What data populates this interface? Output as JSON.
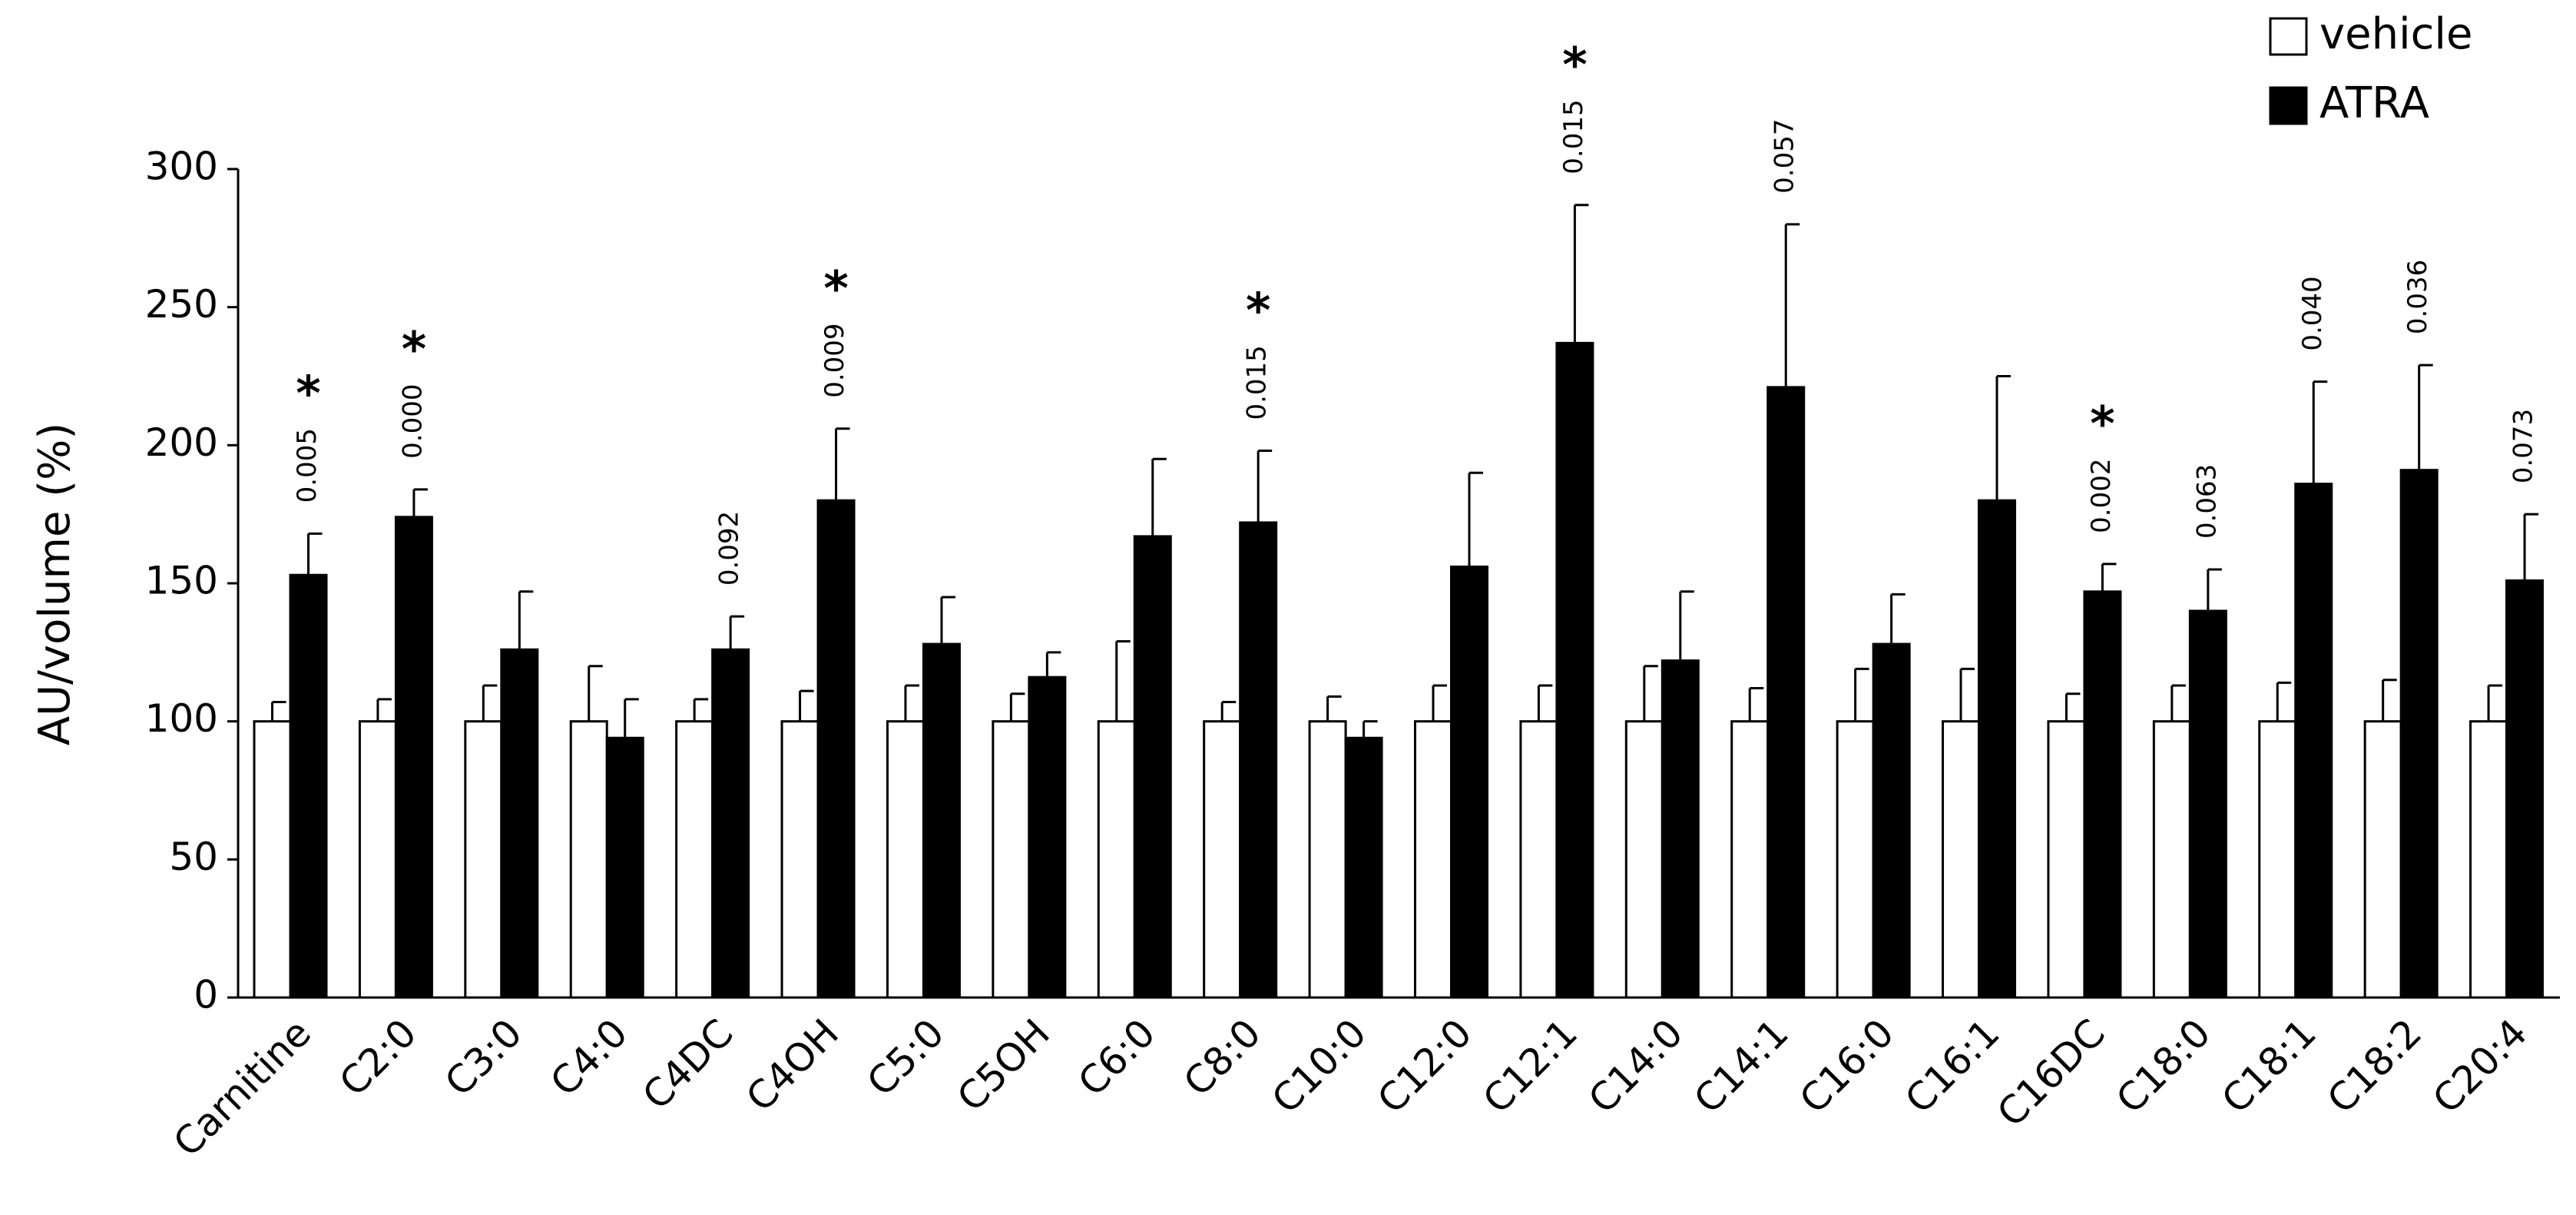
{
  "chart_data": {
    "type": "bar",
    "y_label": "AU/volume (%)",
    "categories": [
      "Carnitine",
      "C2:0",
      "C3:0",
      "C4:0",
      "C4DC",
      "C4OH",
      "C5:0",
      "C5OH",
      "C6:0",
      "C8:0",
      "C10:0",
      "C12:0",
      "C12:1",
      "C14:0",
      "C14:1",
      "C16:0",
      "C16:1",
      "C16DC",
      "C18:0",
      "C18:1",
      "C18:2",
      "C20:4"
    ],
    "series": [
      {
        "name": "vehicle",
        "color": "#ffffff",
        "values": [
          100,
          100,
          100,
          100,
          100,
          100,
          100,
          100,
          100,
          100,
          100,
          100,
          100,
          100,
          100,
          100,
          100,
          100,
          100,
          100,
          100,
          100
        ],
        "errors": [
          7,
          8,
          13,
          20,
          8,
          11,
          13,
          10,
          29,
          7,
          9,
          13,
          13,
          20,
          12,
          19,
          19,
          10,
          13,
          14,
          15,
          13
        ]
      },
      {
        "name": "ATRA",
        "color": "#000000",
        "values": [
          153,
          174,
          126,
          94,
          126,
          180,
          128,
          116,
          167,
          172,
          94,
          156,
          237,
          122,
          221,
          128,
          180,
          147,
          140,
          186,
          191,
          151
        ],
        "errors": [
          15,
          10,
          21,
          14,
          12,
          26,
          17,
          9,
          28,
          26,
          6,
          34,
          50,
          25,
          59,
          18,
          45,
          10,
          15,
          37,
          38,
          24
        ]
      }
    ],
    "p_values": [
      "0.005",
      "0.000",
      null,
      null,
      "0.092",
      "0.009",
      null,
      null,
      null,
      "0.015",
      null,
      null,
      "0.015",
      null,
      "0.057",
      null,
      null,
      "0.002",
      "0.063",
      "0.040",
      "0.036",
      "0.073"
    ],
    "significance": [
      "*",
      "*",
      null,
      null,
      null,
      "*",
      null,
      null,
      null,
      "*",
      null,
      null,
      "*",
      null,
      null,
      null,
      null,
      "*",
      null,
      null,
      null,
      null
    ],
    "ylim": [
      0,
      300
    ],
    "yticks": [
      0,
      50,
      100,
      150,
      200,
      250,
      300
    ],
    "legend": "top-right",
    "grid": false
  }
}
